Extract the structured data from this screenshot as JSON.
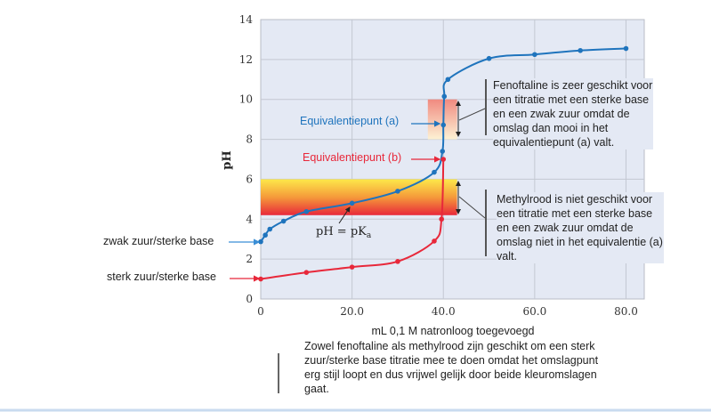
{
  "chart_data": {
    "type": "line",
    "xlabel": "mL 0,1 M natronloog toegevoegd",
    "ylabel": "pH",
    "xlim": [
      0,
      84
    ],
    "ylim": [
      0,
      14
    ],
    "xticks": [
      "0",
      "20.0",
      "40.0",
      "60.0",
      "80.0"
    ],
    "xtick_values": [
      0,
      20,
      40,
      60,
      80
    ],
    "yticks": [
      "0",
      "2",
      "4",
      "6",
      "8",
      "10",
      "12",
      "14"
    ],
    "ytick_values": [
      0,
      2,
      4,
      6,
      8,
      10,
      12,
      14
    ],
    "grid": true,
    "series": [
      {
        "name": "zwak zuur/sterke base",
        "color": "#1f74bd",
        "x": [
          0,
          1,
          2,
          5,
          10,
          20,
          30,
          38,
          39.8,
          40,
          40.2,
          41,
          50,
          60,
          70,
          80
        ],
        "y": [
          2.87,
          3.2,
          3.5,
          3.9,
          4.38,
          4.8,
          5.4,
          6.35,
          7.4,
          8.72,
          10.15,
          11.0,
          12.05,
          12.25,
          12.45,
          12.55
        ]
      },
      {
        "name": "sterk zuur/sterke base",
        "color": "#e8283a",
        "x": [
          0,
          10,
          20,
          30,
          38,
          39.6,
          40
        ],
        "y": [
          1.0,
          1.33,
          1.6,
          1.88,
          2.9,
          4.0,
          7.0
        ]
      }
    ],
    "bands": [
      {
        "indicator": "fenoftaline",
        "x": [
          36.6,
          43
        ],
        "y": [
          8,
          10
        ],
        "colors": [
          "#f08a80",
          "#fdf2d4"
        ]
      },
      {
        "indicator": "methylrood",
        "x": [
          0,
          43
        ],
        "y": [
          4.2,
          6
        ],
        "colors": [
          "#fde84a",
          "#e8283a"
        ]
      }
    ],
    "annotations": {
      "eq_a": "Equivalentiepunt (a)",
      "eq_b": "Equivalentiepunt (b)",
      "pka": "pH = pK",
      "pka_sub": "a"
    }
  },
  "side_labels": {
    "weak": "zwak zuur/sterke base",
    "strong": "sterk zuur/sterke base"
  },
  "notes": {
    "fenoftaline": "Fenoftaline is zeer geschikt voor een titratie met een sterke base en een zwak zuur omdat de omslag dan mooi in het equivalentiepunt (a) valt.",
    "methylrood": "Methylrood is niet geschikt voor een titratie met een sterke base en een zwak zuur omdat de omslag niet in het equivalentie (a) valt.",
    "bottom": "Zowel fenoftaline als methylrood zijn geschikt om een sterk zuur/sterke base titratie mee te doen omdat het omslagpunt erg stijl loopt en dus vrijwel gelijk door beide kleuromslagen gaat."
  }
}
